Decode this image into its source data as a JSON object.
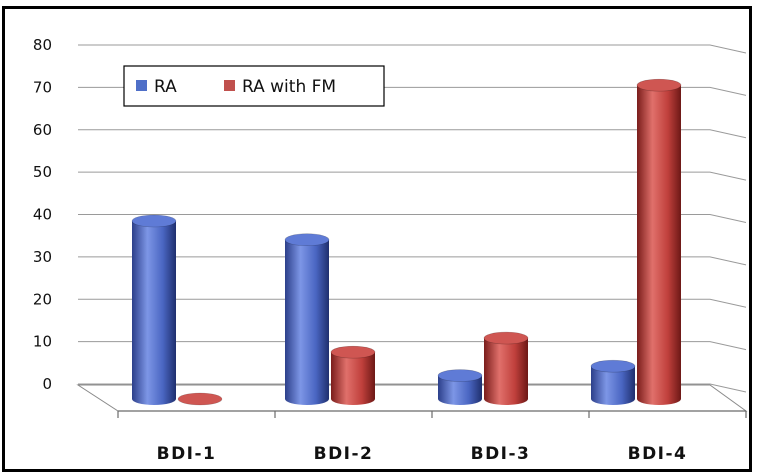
{
  "chart_data": {
    "type": "bar",
    "title": "",
    "xlabel": "",
    "ylabel": "",
    "categories": [
      "BDI-1",
      "BDI-2",
      "BDI-3",
      "BDI-4"
    ],
    "series": [
      {
        "name": "RA",
        "values": [
          38,
          34,
          5,
          7
        ],
        "color": "#4f6fc8"
      },
      {
        "name": "RA with FM",
        "values": [
          0,
          10,
          13,
          67
        ],
        "color": "#c0504d"
      }
    ],
    "ylim": [
      0,
      80
    ],
    "yticks": [
      "0",
      "10",
      "20",
      "30",
      "40",
      "50",
      "60",
      "70",
      "80"
    ],
    "grid": true,
    "legend_position": "top-left",
    "style": "3d-cylinder"
  }
}
